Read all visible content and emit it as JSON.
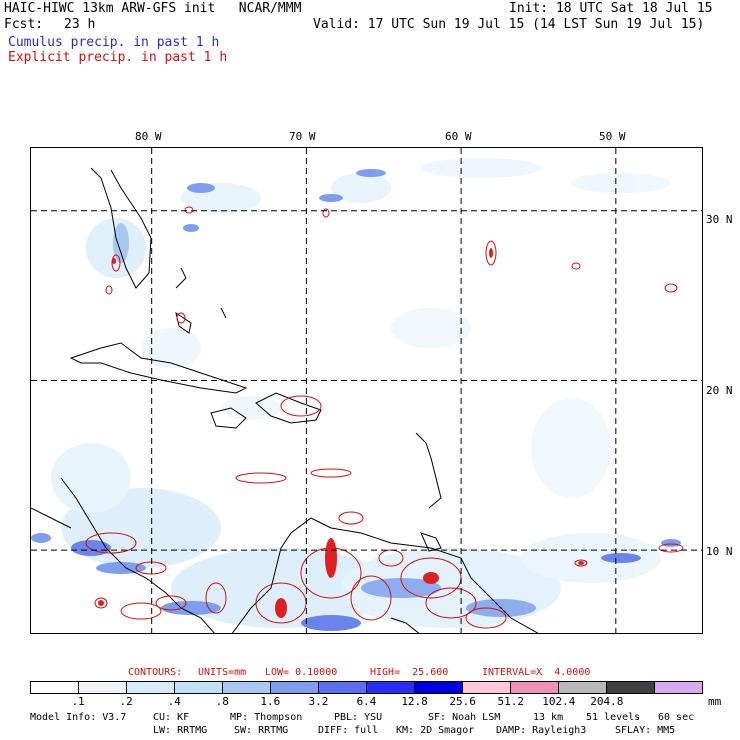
{
  "header": {
    "title": "HAIC-HIWC 13km ARW-GFS init   NCAR/MMM",
    "init": "Init: 18 UTC Sat 18 Jul 15",
    "fcst_label": "Fcst:",
    "fcst_value": "23 h",
    "valid": "Valid: 17 UTC Sun 19 Jul 15 (14 LST Sun 19 Jul 15)",
    "cumulus": "Cumulus precip. in past 1 h",
    "explicit": "Explicit precip. in past 1 h"
  },
  "map": {
    "lon_labels": [
      "80 W",
      "70 W",
      "60 W",
      "50 W"
    ],
    "lat_labels": [
      "30 N",
      "20 N",
      "10 N"
    ],
    "lon_values": [
      -80,
      -70,
      -60,
      -50
    ],
    "lat_values": [
      30,
      20,
      10
    ],
    "extent": {
      "lon_min": -87.8,
      "lon_max": -44.3,
      "lat_min": 5.0,
      "lat_max": 33.7
    },
    "colors": {
      "land": "#000000",
      "grid": "#000000",
      "explicit": "#d01010"
    }
  },
  "contours": {
    "label": "CONTOURS:",
    "units": "UNITS=mm",
    "low": "LOW= 0.10000",
    "high": "HIGH=  25.600",
    "interval": "INTERVAL=X  4.0000"
  },
  "legend": {
    "unit": "mm",
    "ticks": [
      ".1",
      ".2",
      ".4",
      ".8",
      "1.6",
      "3.2",
      "6.4",
      "12.8",
      "25.6",
      "51.2",
      "102.4",
      "204.8"
    ],
    "colors": [
      "#ffffff",
      "#eef6fc",
      "#d8ecfa",
      "#c2e0f6",
      "#a8c8f2",
      "#7d9ef0",
      "#5a6ef0",
      "#2a2ef5",
      "#0000e0",
      "#ffc8d8",
      "#f090b8",
      "#b8b8b8",
      "#404040",
      "#d8a8f0"
    ]
  },
  "footer": {
    "model_info": "Model Info: V3.7",
    "cu": "CU: KF",
    "mp": "MP: Thompson",
    "pbl": "PBL: YSU",
    "sf": "SF: Noah LSM",
    "res": "13 km",
    "levels": "51 levels",
    "dt": "60 sec",
    "lw": "LW: RRTMG",
    "sw": "SW: RRTMG",
    "diff": "DIFF: full",
    "km": "KM: 2D Smagor",
    "damp": "DAMP: Rayleigh3",
    "sflay": "SFLAY: MM5"
  }
}
